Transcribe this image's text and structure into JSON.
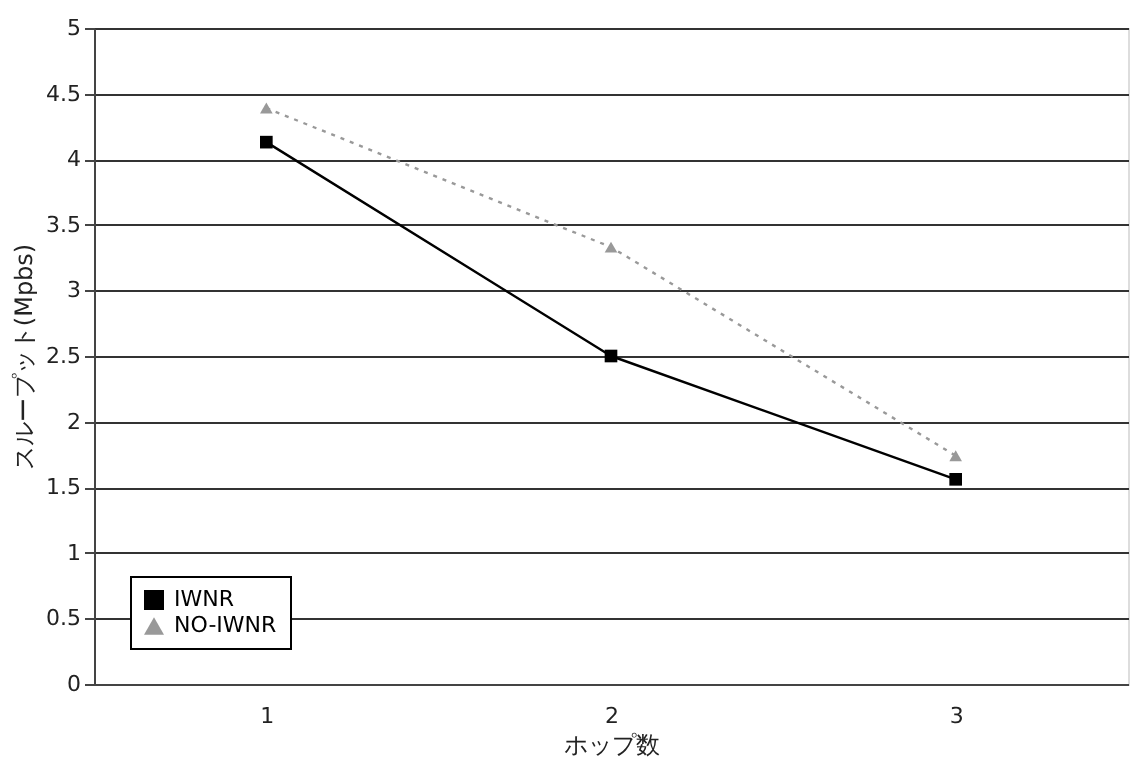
{
  "chart_data": {
    "type": "line",
    "xlabel": "ホップ数",
    "ylabel": "スループット(Mpbs)",
    "categories": [
      "1",
      "2",
      "3"
    ],
    "series": [
      {
        "name": "IWNR",
        "color": "#000000",
        "values": [
          4.13,
          2.5,
          1.56
        ],
        "marker": "square",
        "line_style": "solid"
      },
      {
        "name": "NO-IWNR",
        "color": "#999999",
        "values": [
          4.39,
          3.33,
          1.74
        ],
        "marker": "triangle",
        "line_style": "dotted"
      }
    ],
    "ylim": [
      0,
      5
    ],
    "yticks": [
      0,
      0.5,
      1,
      1.5,
      2,
      2.5,
      3,
      3.5,
      4,
      4.5,
      5
    ],
    "grid": "y",
    "legend": "bottom left"
  }
}
